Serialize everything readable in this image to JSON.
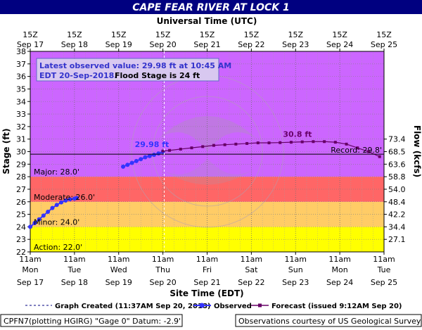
{
  "chart_data": {
    "type": "line",
    "title": "CAPE FEAR RIVER AT LOCK 1",
    "top_axis_label": "Universal Time (UTC)",
    "xlabel": "Site Time (EDT)",
    "ylabel": "Stage (ft)",
    "ylabel_right": "Flow (kcfs)",
    "ylim": [
      22,
      38
    ],
    "y_ticks": [
      22,
      23,
      24,
      25,
      26,
      27,
      28,
      29,
      30,
      31,
      32,
      33,
      34,
      35,
      36,
      37,
      38
    ],
    "x_unit": "days since 2018-09-17 11:00 EDT",
    "xlim": [
      0,
      8
    ],
    "top_ticks": [
      {
        "top": "15Z",
        "bottom": "Sep 17"
      },
      {
        "top": "15Z",
        "bottom": "Sep 18"
      },
      {
        "top": "15Z",
        "bottom": "Sep 19"
      },
      {
        "top": "15Z",
        "bottom": "Sep 20"
      },
      {
        "top": "15Z",
        "bottom": "Sep 21"
      },
      {
        "top": "15Z",
        "bottom": "Sep 22"
      },
      {
        "top": "15Z",
        "bottom": "Sep 23"
      },
      {
        "top": "15Z",
        "bottom": "Sep 24"
      },
      {
        "top": "15Z",
        "bottom": "Sep 25"
      }
    ],
    "bottom_ticks": [
      {
        "time": "11am",
        "day": "Mon",
        "date": "Sep 17"
      },
      {
        "time": "11am",
        "day": "Tue",
        "date": "Sep 18"
      },
      {
        "time": "11am",
        "day": "Wed",
        "date": "Sep 19"
      },
      {
        "time": "11am",
        "day": "Thu",
        "date": "Sep 20"
      },
      {
        "time": "11am",
        "day": "Fri",
        "date": "Sep 21"
      },
      {
        "time": "11am",
        "day": "Sat",
        "date": "Sep 22"
      },
      {
        "time": "11am",
        "day": "Sun",
        "date": "Sep 23"
      },
      {
        "time": "11am",
        "day": "Mon",
        "date": "Sep 24"
      },
      {
        "time": "11am",
        "day": "Tue",
        "date": "Sep 25"
      }
    ],
    "flow_ticks": [
      {
        "stage": 23,
        "label": "27.1"
      },
      {
        "stage": 24,
        "label": "34.4"
      },
      {
        "stage": 25,
        "label": "42.2"
      },
      {
        "stage": 26,
        "label": "48.4"
      },
      {
        "stage": 27,
        "label": "54.0"
      },
      {
        "stage": 28,
        "label": "58.8"
      },
      {
        "stage": 29,
        "label": "63.6"
      },
      {
        "stage": 30,
        "label": "68.5"
      },
      {
        "stage": 31,
        "label": "73.4"
      }
    ],
    "flood_categories": [
      {
        "name": "Action",
        "label": "Action: 22.0'",
        "from": 22,
        "to": 24,
        "color": "#ffff00"
      },
      {
        "name": "Minor",
        "label": "Minor: 24.0'",
        "from": 24,
        "to": 26,
        "color": "#ffcc66"
      },
      {
        "name": "Moderate",
        "label": "Moderate: 26.0'",
        "from": 26,
        "to": 28,
        "color": "#ff6666"
      },
      {
        "name": "Major",
        "label": "Major: 28.0'",
        "from": 28,
        "to": 38,
        "color": "#cc66ff"
      }
    ],
    "record": {
      "label": "Record: 29.8'",
      "value": 29.8
    },
    "graph_created_x": 3.03,
    "series": [
      {
        "name": "Observed",
        "color": "#3333ff",
        "x": [
          0.0,
          0.1,
          0.2,
          0.3,
          0.4,
          0.5,
          0.6,
          0.7,
          0.8,
          0.9,
          1.0,
          1.05,
          2.1,
          2.2,
          2.3,
          2.4,
          2.5,
          2.6,
          2.7,
          2.8,
          2.9,
          3.0
        ],
        "y": [
          24.0,
          24.3,
          24.6,
          24.9,
          25.2,
          25.5,
          25.75,
          25.95,
          26.1,
          26.2,
          26.25,
          26.3,
          28.8,
          28.95,
          29.1,
          29.25,
          29.4,
          29.55,
          29.65,
          29.75,
          29.85,
          29.98
        ]
      },
      {
        "name": "Forecast (issued 9:12AM Sep 20)",
        "color": "#660066",
        "x": [
          3.0,
          3.15,
          3.4,
          3.65,
          3.9,
          4.15,
          4.4,
          4.65,
          4.9,
          5.15,
          5.4,
          5.65,
          5.9,
          6.15,
          6.4,
          6.65,
          6.9,
          7.15,
          7.4,
          7.65,
          7.9
        ],
        "y": [
          30.05,
          30.1,
          30.2,
          30.3,
          30.4,
          30.5,
          30.55,
          30.6,
          30.65,
          30.7,
          30.7,
          30.72,
          30.75,
          30.78,
          30.8,
          30.8,
          30.75,
          30.6,
          30.3,
          30.0,
          29.6
        ]
      }
    ],
    "labels": {
      "latest_obs_line1": "Latest observed value: 29.98 ft at 10:45 AM",
      "latest_obs_line2": "EDT 20-Sep-2018.",
      "flood_stage": "Flood Stage is 24 ft",
      "obs_value": "29.98 ft",
      "forecast_peak": "30.8 ft"
    },
    "legend": {
      "graph_created": "Graph Created (11:37AM Sep 20, 2018)",
      "observed": "Observed",
      "forecast": "Forecast (issued 9:12AM Sep 20)"
    },
    "footer": {
      "left": "CPFN7(plotting HGIRG) \"Gage 0\" Datum: -2.9'",
      "right": "Observations courtesy of US Geological Survey"
    }
  }
}
